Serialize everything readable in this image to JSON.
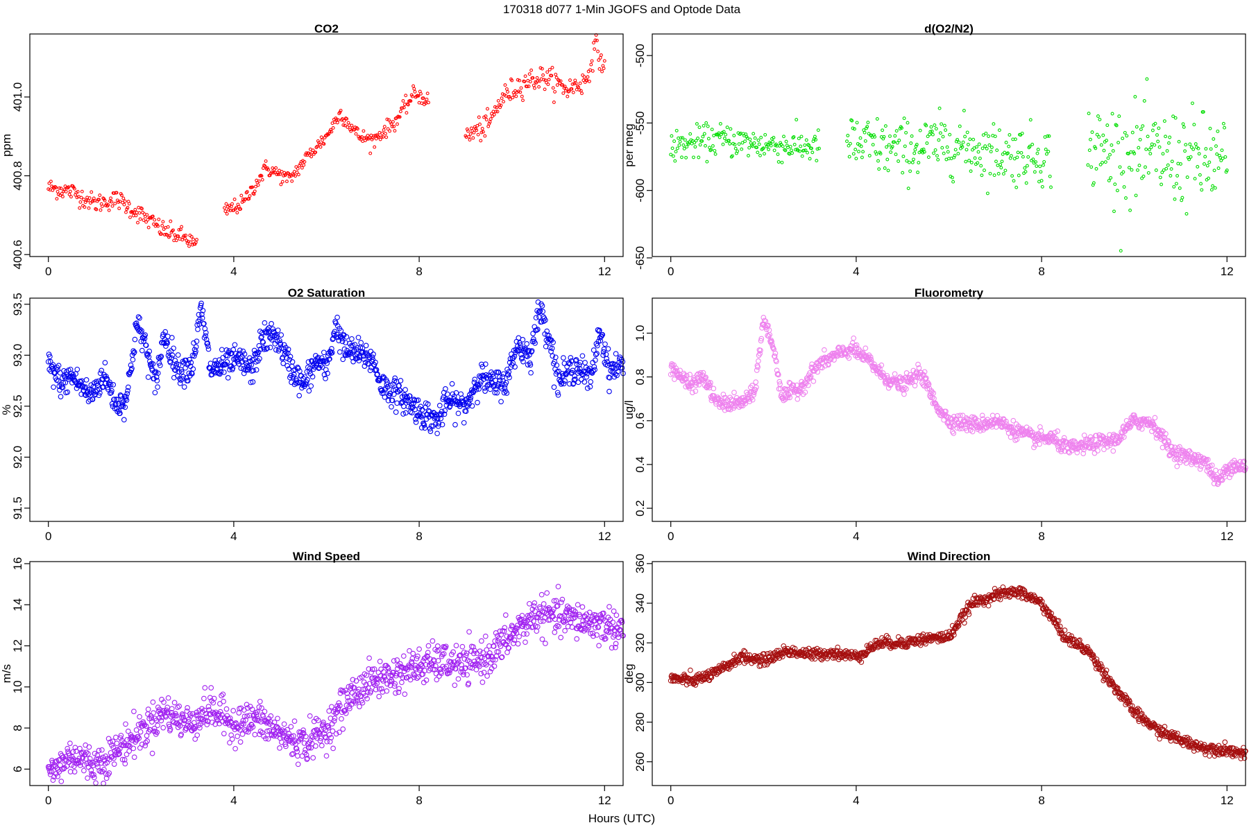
{
  "figure": {
    "title": "170318   d077   1-Min  JGOFS and Optode Data",
    "xlabel": "Hours (UTC)"
  },
  "chart_data": [
    {
      "type": "scatter",
      "title": "CO2",
      "ylabel": "ppm",
      "color": "#ff0000",
      "marker_size": "small",
      "xlim": [
        -0.4,
        12.4
      ],
      "ylim": [
        400.595,
        401.16
      ],
      "xticks": [
        0,
        4,
        8,
        12
      ],
      "yticks": [
        400.6,
        400.8,
        401.0
      ],
      "ytick_labels": [
        "400.6",
        "400.8",
        "401.0"
      ],
      "segments": [
        {
          "x": [
            0.0,
            3.2
          ],
          "knots": [
            [
              0.0,
              400.77
            ],
            [
              0.5,
              400.76
            ],
            [
              1.0,
              400.73
            ],
            [
              1.5,
              400.74
            ],
            [
              2.0,
              400.7
            ],
            [
              2.5,
              400.66
            ],
            [
              3.0,
              400.64
            ],
            [
              3.2,
              400.62
            ]
          ],
          "noise": 0.012
        },
        {
          "x": [
            3.8,
            8.2
          ],
          "knots": [
            [
              3.8,
              400.71
            ],
            [
              4.2,
              400.73
            ],
            [
              4.7,
              400.82
            ],
            [
              5.2,
              400.79
            ],
            [
              5.6,
              400.85
            ],
            [
              6.0,
              400.9
            ],
            [
              6.3,
              400.96
            ],
            [
              6.7,
              400.9
            ],
            [
              7.0,
              400.89
            ],
            [
              7.5,
              400.94
            ],
            [
              7.9,
              401.01
            ],
            [
              8.2,
              400.99
            ]
          ],
          "noise": 0.01
        },
        {
          "x": [
            9.0,
            12.0
          ],
          "knots": [
            [
              9.0,
              400.9
            ],
            [
              9.5,
              400.93
            ],
            [
              9.8,
              401.0
            ],
            [
              10.3,
              401.04
            ],
            [
              10.7,
              401.05
            ],
            [
              11.2,
              401.02
            ],
            [
              11.6,
              401.04
            ],
            [
              11.8,
              401.13
            ],
            [
              12.0,
              401.07
            ]
          ],
          "noise": 0.015
        }
      ]
    },
    {
      "type": "scatter",
      "title": "d(O2/N2)",
      "ylabel": "per meg",
      "color": "#00dd00",
      "marker_size": "small",
      "xlim": [
        -0.4,
        12.4
      ],
      "ylim": [
        -649,
        -484
      ],
      "xticks": [
        0,
        4,
        8,
        12
      ],
      "yticks": [
        -650,
        -600,
        -550,
        -500
      ],
      "ytick_labels": [
        "-650",
        "-600",
        "-550",
        "-500"
      ],
      "segments": [
        {
          "x": [
            0.0,
            3.2
          ],
          "knots": [
            [
              0.0,
              -568
            ],
            [
              1.0,
              -562
            ],
            [
              2.0,
              -566
            ],
            [
              3.2,
              -568
            ]
          ],
          "noise": 6
        },
        {
          "x": [
            3.8,
            8.2
          ],
          "knots": [
            [
              3.8,
              -565
            ],
            [
              5.0,
              -570
            ],
            [
              6.0,
              -565
            ],
            [
              7.0,
              -572
            ],
            [
              8.2,
              -575
            ]
          ],
          "noise": 11
        },
        {
          "x": [
            9.0,
            12.0
          ],
          "knots": [
            [
              9.0,
              -570
            ],
            [
              10.5,
              -575
            ],
            [
              12.0,
              -580
            ]
          ],
          "noise": 18
        }
      ]
    },
    {
      "type": "scatter",
      "title": "O2 Saturation",
      "ylabel": "%",
      "color": "#0000ee",
      "marker_size": "large",
      "xlim": [
        -0.4,
        12.4
      ],
      "ylim": [
        91.37,
        93.56
      ],
      "xticks": [
        0,
        4,
        8,
        12
      ],
      "yticks": [
        91.5,
        92.0,
        92.5,
        93.0,
        93.5
      ],
      "ytick_labels": [
        "91.5",
        "92.0",
        "92.5",
        "93.0",
        "93.5"
      ],
      "segments": [
        {
          "x": [
            0.0,
            12.4
          ],
          "knots": [
            [
              0.0,
              92.9
            ],
            [
              0.3,
              92.72
            ],
            [
              0.5,
              92.8
            ],
            [
              0.9,
              92.6
            ],
            [
              1.2,
              92.8
            ],
            [
              1.5,
              92.5
            ],
            [
              1.7,
              92.6
            ],
            [
              1.9,
              93.3
            ],
            [
              2.1,
              93.1
            ],
            [
              2.3,
              92.7
            ],
            [
              2.5,
              93.2
            ],
            [
              2.8,
              92.85
            ],
            [
              3.1,
              92.9
            ],
            [
              3.3,
              93.45
            ],
            [
              3.5,
              92.85
            ],
            [
              3.8,
              92.9
            ],
            [
              4.1,
              92.95
            ],
            [
              4.4,
              92.85
            ],
            [
              4.6,
              93.15
            ],
            [
              4.9,
              93.2
            ],
            [
              5.2,
              92.9
            ],
            [
              5.5,
              92.7
            ],
            [
              5.8,
              92.95
            ],
            [
              6.0,
              92.85
            ],
            [
              6.2,
              93.3
            ],
            [
              6.4,
              93.05
            ],
            [
              6.8,
              93.0
            ],
            [
              7.0,
              92.95
            ],
            [
              7.2,
              92.7
            ],
            [
              7.6,
              92.6
            ],
            [
              8.0,
              92.45
            ],
            [
              8.4,
              92.35
            ],
            [
              8.6,
              92.55
            ],
            [
              9.0,
              92.5
            ],
            [
              9.3,
              92.8
            ],
            [
              9.6,
              92.7
            ],
            [
              9.9,
              92.75
            ],
            [
              10.1,
              93.1
            ],
            [
              10.4,
              93.0
            ],
            [
              10.6,
              93.45
            ],
            [
              10.8,
              93.2
            ],
            [
              11.0,
              92.75
            ],
            [
              11.4,
              92.9
            ],
            [
              11.7,
              92.75
            ],
            [
              11.9,
              93.25
            ],
            [
              12.1,
              92.85
            ],
            [
              12.4,
              92.9
            ]
          ],
          "noise": 0.07
        }
      ]
    },
    {
      "type": "scatter",
      "title": "Fluorometry",
      "ylabel": "ug/l",
      "color": "#ee82ee",
      "marker_size": "large",
      "xlim": [
        -0.4,
        12.4
      ],
      "ylim": [
        0.14,
        1.16
      ],
      "xticks": [
        0,
        4,
        8,
        12
      ],
      "yticks": [
        0.2,
        0.4,
        0.6,
        0.8,
        1.0
      ],
      "ytick_labels": [
        "0.2",
        "0.4",
        "0.6",
        "0.8",
        "1.0"
      ],
      "segments": [
        {
          "x": [
            0.0,
            12.4
          ],
          "knots": [
            [
              0.0,
              0.85
            ],
            [
              0.4,
              0.76
            ],
            [
              0.7,
              0.8
            ],
            [
              1.0,
              0.68
            ],
            [
              1.5,
              0.68
            ],
            [
              1.8,
              0.72
            ],
            [
              2.0,
              1.06
            ],
            [
              2.2,
              0.95
            ],
            [
              2.4,
              0.71
            ],
            [
              2.8,
              0.75
            ],
            [
              3.2,
              0.86
            ],
            [
              3.6,
              0.9
            ],
            [
              3.9,
              0.93
            ],
            [
              4.3,
              0.87
            ],
            [
              4.6,
              0.8
            ],
            [
              5.0,
              0.76
            ],
            [
              5.4,
              0.82
            ],
            [
              5.7,
              0.68
            ],
            [
              6.0,
              0.6
            ],
            [
              6.6,
              0.58
            ],
            [
              7.0,
              0.6
            ],
            [
              7.4,
              0.56
            ],
            [
              7.8,
              0.52
            ],
            [
              8.2,
              0.52
            ],
            [
              8.6,
              0.47
            ],
            [
              9.0,
              0.49
            ],
            [
              9.6,
              0.51
            ],
            [
              10.0,
              0.6
            ],
            [
              10.4,
              0.59
            ],
            [
              10.8,
              0.46
            ],
            [
              11.2,
              0.43
            ],
            [
              11.5,
              0.42
            ],
            [
              11.8,
              0.32
            ],
            [
              12.1,
              0.4
            ],
            [
              12.4,
              0.39
            ]
          ],
          "noise": 0.018
        }
      ]
    },
    {
      "type": "scatter",
      "title": "Wind Speed",
      "ylabel": "m/s",
      "color": "#a020f0",
      "marker_size": "large",
      "xlim": [
        -0.4,
        12.4
      ],
      "ylim": [
        5.2,
        16.1
      ],
      "xticks": [
        0,
        4,
        8,
        12
      ],
      "yticks": [
        6,
        8,
        10,
        12,
        14,
        16
      ],
      "ytick_labels": [
        "6",
        "8",
        "10",
        "12",
        "14",
        "16"
      ],
      "segments": [
        {
          "x": [
            0.0,
            12.4
          ],
          "knots": [
            [
              0.0,
              5.7
            ],
            [
              0.5,
              6.7
            ],
            [
              1.0,
              6.2
            ],
            [
              1.3,
              6.6
            ],
            [
              2.0,
              7.8
            ],
            [
              2.5,
              8.8
            ],
            [
              3.0,
              8.2
            ],
            [
              3.5,
              8.9
            ],
            [
              4.0,
              8.2
            ],
            [
              4.5,
              8.4
            ],
            [
              5.0,
              7.7
            ],
            [
              5.5,
              7.2
            ],
            [
              6.0,
              7.9
            ],
            [
              6.5,
              9.5
            ],
            [
              7.0,
              10.3
            ],
            [
              7.5,
              10.6
            ],
            [
              8.0,
              11.0
            ],
            [
              8.5,
              11.2
            ],
            [
              9.0,
              11.0
            ],
            [
              9.5,
              11.5
            ],
            [
              10.0,
              12.5
            ],
            [
              10.5,
              13.5
            ],
            [
              11.0,
              13.4
            ],
            [
              11.5,
              13.2
            ],
            [
              12.0,
              13.0
            ],
            [
              12.4,
              12.8
            ]
          ],
          "noise": 0.45
        }
      ]
    },
    {
      "type": "scatter",
      "title": "Wind Direction",
      "ylabel": "deg",
      "color": "#a50f0f",
      "marker_size": "large",
      "xlim": [
        -0.4,
        12.4
      ],
      "ylim": [
        248,
        361
      ],
      "xticks": [
        0,
        4,
        8,
        12
      ],
      "yticks": [
        260,
        280,
        300,
        320,
        340,
        360
      ],
      "ytick_labels": [
        "260",
        "280",
        "300",
        "320",
        "340",
        "360"
      ],
      "segments": [
        {
          "x": [
            0.0,
            12.4
          ],
          "knots": [
            [
              0.0,
              302
            ],
            [
              0.5,
              301
            ],
            [
              1.0,
              305
            ],
            [
              1.5,
              313
            ],
            [
              2.0,
              311
            ],
            [
              2.5,
              316
            ],
            [
              3.0,
              314
            ],
            [
              3.5,
              315
            ],
            [
              4.0,
              313
            ],
            [
              4.5,
              320
            ],
            [
              5.0,
              320
            ],
            [
              5.5,
              322
            ],
            [
              6.0,
              323
            ],
            [
              6.5,
              340
            ],
            [
              7.0,
              344
            ],
            [
              7.5,
              346
            ],
            [
              8.0,
              340
            ],
            [
              8.5,
              323
            ],
            [
              9.0,
              316
            ],
            [
              9.5,
              300
            ],
            [
              10.0,
              285
            ],
            [
              10.5,
              276
            ],
            [
              11.0,
              271
            ],
            [
              11.5,
              267
            ],
            [
              12.0,
              266
            ],
            [
              12.4,
              264
            ]
          ],
          "noise": 1.4
        }
      ]
    }
  ]
}
